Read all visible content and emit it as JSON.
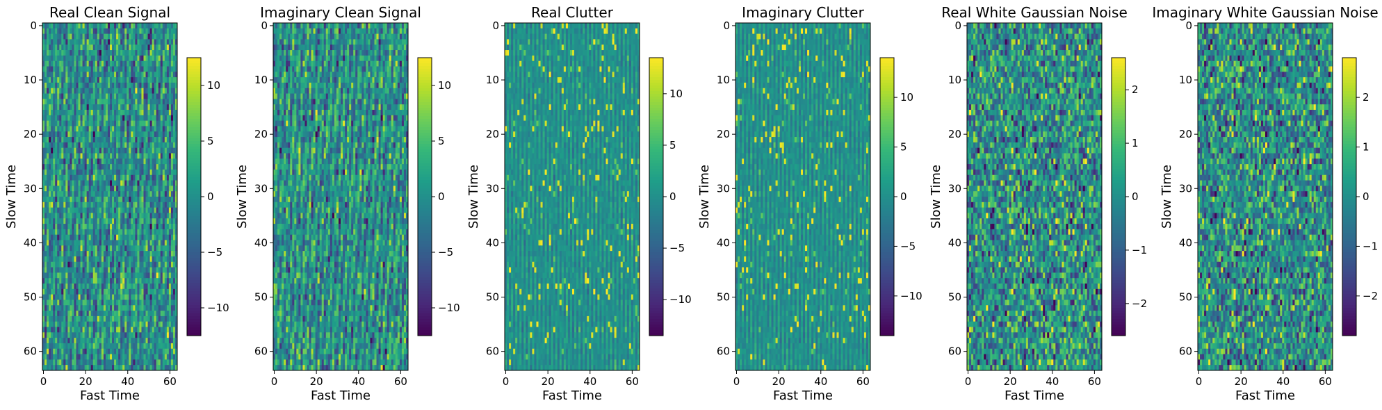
{
  "figure": {
    "colormap": "viridis",
    "colormap_stops": [
      "#440154",
      "#482878",
      "#3e4989",
      "#31688e",
      "#26828e",
      "#1f9e89",
      "#35b779",
      "#6ece58",
      "#b5de2b",
      "#fde725"
    ]
  },
  "chart_data": [
    {
      "type": "heatmap",
      "title": "Real Clean Signal",
      "xlabel": "Fast Time",
      "ylabel": "Slow Time",
      "x_ticks": [
        "0",
        "20",
        "40",
        "60"
      ],
      "y_ticks": [
        "0",
        "10",
        "20",
        "30",
        "40",
        "50",
        "60"
      ],
      "grid_size": [
        64,
        64
      ],
      "xlim": [
        0,
        63
      ],
      "ylim": [
        63,
        0
      ],
      "colorbar": {
        "range": [
          -12.5,
          12.5
        ],
        "ticks": [
          "10",
          "5",
          "0",
          "−5",
          "−10"
        ],
        "tick_values": [
          10,
          5,
          0,
          -5,
          -10
        ]
      },
      "pattern": "diagonal stripes"
    },
    {
      "type": "heatmap",
      "title": "Imaginary Clean Signal",
      "xlabel": "Fast Time",
      "ylabel": "Slow Time",
      "x_ticks": [
        "0",
        "20",
        "40",
        "60"
      ],
      "y_ticks": [
        "0",
        "10",
        "20",
        "30",
        "40",
        "50",
        "60"
      ],
      "grid_size": [
        64,
        64
      ],
      "xlim": [
        0,
        63
      ],
      "ylim": [
        63,
        0
      ],
      "colorbar": {
        "range": [
          -12.5,
          12.5
        ],
        "ticks": [
          "10",
          "5",
          "0",
          "−5",
          "−10"
        ],
        "tick_values": [
          10,
          5,
          0,
          -5,
          -10
        ]
      },
      "pattern": "diagonal stripes"
    },
    {
      "type": "heatmap",
      "title": "Real Clutter",
      "xlabel": "Fast Time",
      "ylabel": "Slow Time",
      "x_ticks": [
        "0",
        "20",
        "40",
        "60"
      ],
      "y_ticks": [
        "0",
        "10",
        "20",
        "30",
        "40",
        "50",
        "60"
      ],
      "grid_size": [
        64,
        64
      ],
      "xlim": [
        0,
        63
      ],
      "ylim": [
        63,
        0
      ],
      "colorbar": {
        "range": [
          -13.5,
          13.5
        ],
        "ticks": [
          "10",
          "5",
          "0",
          "−5",
          "−10"
        ],
        "tick_values": [
          10,
          5,
          0,
          -5,
          -10
        ]
      },
      "pattern": "sparse bright columns"
    },
    {
      "type": "heatmap",
      "title": "Imaginary Clutter",
      "xlabel": "Fast Time",
      "ylabel": "Slow Time",
      "x_ticks": [
        "0",
        "20",
        "40",
        "60"
      ],
      "y_ticks": [
        "0",
        "10",
        "20",
        "30",
        "40",
        "50",
        "60"
      ],
      "grid_size": [
        64,
        64
      ],
      "xlim": [
        0,
        63
      ],
      "ylim": [
        63,
        0
      ],
      "colorbar": {
        "range": [
          -14,
          14
        ],
        "ticks": [
          "10",
          "5",
          "0",
          "−5",
          "−10"
        ],
        "tick_values": [
          10,
          5,
          0,
          -5,
          -10
        ]
      },
      "pattern": "sparse bright columns"
    },
    {
      "type": "heatmap",
      "title": "Real White Gaussian Noise",
      "xlabel": "Fast Time",
      "ylabel": "Slow Time",
      "x_ticks": [
        "0",
        "20",
        "40",
        "60"
      ],
      "y_ticks": [
        "0",
        "10",
        "20",
        "30",
        "40",
        "50",
        "60"
      ],
      "grid_size": [
        64,
        64
      ],
      "xlim": [
        0,
        63
      ],
      "ylim": [
        63,
        0
      ],
      "colorbar": {
        "range": [
          -2.6,
          2.6
        ],
        "ticks": [
          "2",
          "1",
          "0",
          "−1",
          "−2"
        ],
        "tick_values": [
          2,
          1,
          0,
          -1,
          -2
        ]
      },
      "pattern": "gaussian noise"
    },
    {
      "type": "heatmap",
      "title": "Imaginary White Gaussian Noise",
      "xlabel": "Fast Time",
      "ylabel": "Slow Time",
      "x_ticks": [
        "0",
        "20",
        "40",
        "60"
      ],
      "y_ticks": [
        "0",
        "10",
        "20",
        "30",
        "40",
        "50",
        "60"
      ],
      "grid_size": [
        64,
        64
      ],
      "xlim": [
        0,
        63
      ],
      "ylim": [
        63,
        0
      ],
      "colorbar": {
        "range": [
          -2.8,
          2.8
        ],
        "ticks": [
          "2",
          "1",
          "0",
          "−1",
          "−2"
        ],
        "tick_values": [
          2,
          1,
          0,
          -1,
          -2
        ]
      },
      "pattern": "gaussian noise"
    }
  ]
}
